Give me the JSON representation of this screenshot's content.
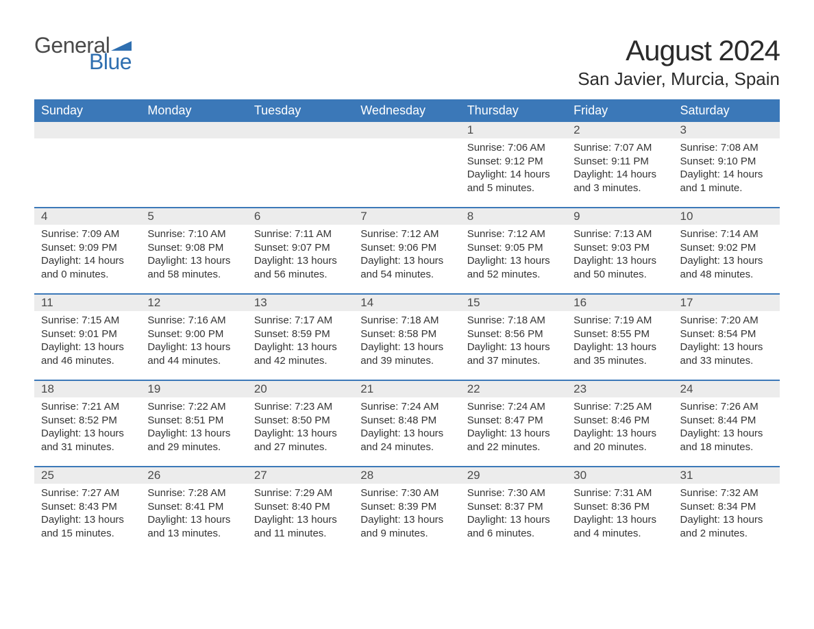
{
  "brand": {
    "word1": "General",
    "word2": "Blue",
    "logo_color": "#2f6fb0",
    "text_color": "#4a4a4a"
  },
  "title": "August 2024",
  "subtitle": "San Javier, Murcia, Spain",
  "colors": {
    "header_bg": "#3b78b8",
    "header_text": "#ffffff",
    "daynum_bg": "#ececec",
    "row_border": "#3b78b8",
    "body_text": "#333333",
    "page_bg": "#ffffff"
  },
  "weekdays": [
    "Sunday",
    "Monday",
    "Tuesday",
    "Wednesday",
    "Thursday",
    "Friday",
    "Saturday"
  ],
  "weeks": [
    [
      null,
      null,
      null,
      null,
      {
        "n": "1",
        "sunrise": "Sunrise: 7:06 AM",
        "sunset": "Sunset: 9:12 PM",
        "dl1": "Daylight: 14 hours",
        "dl2": "and 5 minutes."
      },
      {
        "n": "2",
        "sunrise": "Sunrise: 7:07 AM",
        "sunset": "Sunset: 9:11 PM",
        "dl1": "Daylight: 14 hours",
        "dl2": "and 3 minutes."
      },
      {
        "n": "3",
        "sunrise": "Sunrise: 7:08 AM",
        "sunset": "Sunset: 9:10 PM",
        "dl1": "Daylight: 14 hours",
        "dl2": "and 1 minute."
      }
    ],
    [
      {
        "n": "4",
        "sunrise": "Sunrise: 7:09 AM",
        "sunset": "Sunset: 9:09 PM",
        "dl1": "Daylight: 14 hours",
        "dl2": "and 0 minutes."
      },
      {
        "n": "5",
        "sunrise": "Sunrise: 7:10 AM",
        "sunset": "Sunset: 9:08 PM",
        "dl1": "Daylight: 13 hours",
        "dl2": "and 58 minutes."
      },
      {
        "n": "6",
        "sunrise": "Sunrise: 7:11 AM",
        "sunset": "Sunset: 9:07 PM",
        "dl1": "Daylight: 13 hours",
        "dl2": "and 56 minutes."
      },
      {
        "n": "7",
        "sunrise": "Sunrise: 7:12 AM",
        "sunset": "Sunset: 9:06 PM",
        "dl1": "Daylight: 13 hours",
        "dl2": "and 54 minutes."
      },
      {
        "n": "8",
        "sunrise": "Sunrise: 7:12 AM",
        "sunset": "Sunset: 9:05 PM",
        "dl1": "Daylight: 13 hours",
        "dl2": "and 52 minutes."
      },
      {
        "n": "9",
        "sunrise": "Sunrise: 7:13 AM",
        "sunset": "Sunset: 9:03 PM",
        "dl1": "Daylight: 13 hours",
        "dl2": "and 50 minutes."
      },
      {
        "n": "10",
        "sunrise": "Sunrise: 7:14 AM",
        "sunset": "Sunset: 9:02 PM",
        "dl1": "Daylight: 13 hours",
        "dl2": "and 48 minutes."
      }
    ],
    [
      {
        "n": "11",
        "sunrise": "Sunrise: 7:15 AM",
        "sunset": "Sunset: 9:01 PM",
        "dl1": "Daylight: 13 hours",
        "dl2": "and 46 minutes."
      },
      {
        "n": "12",
        "sunrise": "Sunrise: 7:16 AM",
        "sunset": "Sunset: 9:00 PM",
        "dl1": "Daylight: 13 hours",
        "dl2": "and 44 minutes."
      },
      {
        "n": "13",
        "sunrise": "Sunrise: 7:17 AM",
        "sunset": "Sunset: 8:59 PM",
        "dl1": "Daylight: 13 hours",
        "dl2": "and 42 minutes."
      },
      {
        "n": "14",
        "sunrise": "Sunrise: 7:18 AM",
        "sunset": "Sunset: 8:58 PM",
        "dl1": "Daylight: 13 hours",
        "dl2": "and 39 minutes."
      },
      {
        "n": "15",
        "sunrise": "Sunrise: 7:18 AM",
        "sunset": "Sunset: 8:56 PM",
        "dl1": "Daylight: 13 hours",
        "dl2": "and 37 minutes."
      },
      {
        "n": "16",
        "sunrise": "Sunrise: 7:19 AM",
        "sunset": "Sunset: 8:55 PM",
        "dl1": "Daylight: 13 hours",
        "dl2": "and 35 minutes."
      },
      {
        "n": "17",
        "sunrise": "Sunrise: 7:20 AM",
        "sunset": "Sunset: 8:54 PM",
        "dl1": "Daylight: 13 hours",
        "dl2": "and 33 minutes."
      }
    ],
    [
      {
        "n": "18",
        "sunrise": "Sunrise: 7:21 AM",
        "sunset": "Sunset: 8:52 PM",
        "dl1": "Daylight: 13 hours",
        "dl2": "and 31 minutes."
      },
      {
        "n": "19",
        "sunrise": "Sunrise: 7:22 AM",
        "sunset": "Sunset: 8:51 PM",
        "dl1": "Daylight: 13 hours",
        "dl2": "and 29 minutes."
      },
      {
        "n": "20",
        "sunrise": "Sunrise: 7:23 AM",
        "sunset": "Sunset: 8:50 PM",
        "dl1": "Daylight: 13 hours",
        "dl2": "and 27 minutes."
      },
      {
        "n": "21",
        "sunrise": "Sunrise: 7:24 AM",
        "sunset": "Sunset: 8:48 PM",
        "dl1": "Daylight: 13 hours",
        "dl2": "and 24 minutes."
      },
      {
        "n": "22",
        "sunrise": "Sunrise: 7:24 AM",
        "sunset": "Sunset: 8:47 PM",
        "dl1": "Daylight: 13 hours",
        "dl2": "and 22 minutes."
      },
      {
        "n": "23",
        "sunrise": "Sunrise: 7:25 AM",
        "sunset": "Sunset: 8:46 PM",
        "dl1": "Daylight: 13 hours",
        "dl2": "and 20 minutes."
      },
      {
        "n": "24",
        "sunrise": "Sunrise: 7:26 AM",
        "sunset": "Sunset: 8:44 PM",
        "dl1": "Daylight: 13 hours",
        "dl2": "and 18 minutes."
      }
    ],
    [
      {
        "n": "25",
        "sunrise": "Sunrise: 7:27 AM",
        "sunset": "Sunset: 8:43 PM",
        "dl1": "Daylight: 13 hours",
        "dl2": "and 15 minutes."
      },
      {
        "n": "26",
        "sunrise": "Sunrise: 7:28 AM",
        "sunset": "Sunset: 8:41 PM",
        "dl1": "Daylight: 13 hours",
        "dl2": "and 13 minutes."
      },
      {
        "n": "27",
        "sunrise": "Sunrise: 7:29 AM",
        "sunset": "Sunset: 8:40 PM",
        "dl1": "Daylight: 13 hours",
        "dl2": "and 11 minutes."
      },
      {
        "n": "28",
        "sunrise": "Sunrise: 7:30 AM",
        "sunset": "Sunset: 8:39 PM",
        "dl1": "Daylight: 13 hours",
        "dl2": "and 9 minutes."
      },
      {
        "n": "29",
        "sunrise": "Sunrise: 7:30 AM",
        "sunset": "Sunset: 8:37 PM",
        "dl1": "Daylight: 13 hours",
        "dl2": "and 6 minutes."
      },
      {
        "n": "30",
        "sunrise": "Sunrise: 7:31 AM",
        "sunset": "Sunset: 8:36 PM",
        "dl1": "Daylight: 13 hours",
        "dl2": "and 4 minutes."
      },
      {
        "n": "31",
        "sunrise": "Sunrise: 7:32 AM",
        "sunset": "Sunset: 8:34 PM",
        "dl1": "Daylight: 13 hours",
        "dl2": "and 2 minutes."
      }
    ]
  ]
}
